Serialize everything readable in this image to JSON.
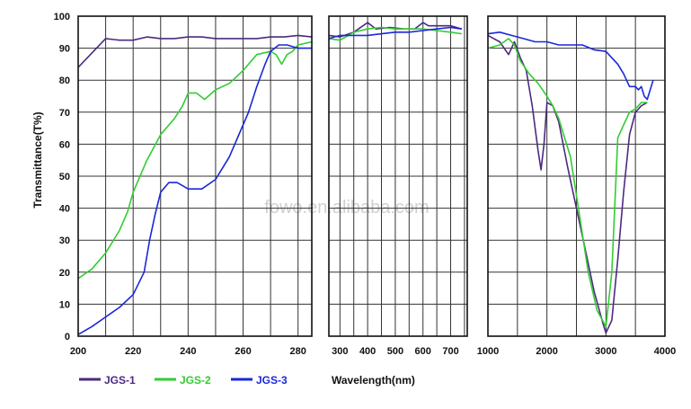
{
  "chart_data": {
    "type": "line",
    "ylabel": "Transmittance(T%)",
    "xlabel": "Wavelength(nm)",
    "ylim": [
      0,
      100
    ],
    "yticks": [
      "0",
      "10",
      "20",
      "30",
      "40",
      "50",
      "60",
      "70",
      "80",
      "90",
      "100"
    ],
    "grid": true,
    "legend_position": "bottom",
    "watermark": "fowo.en.alibaba.com",
    "panels": [
      {
        "xlim": [
          200,
          285
        ],
        "xticks": [
          {
            "v": 200,
            "label": "200"
          },
          {
            "v": 220,
            "label": "220"
          },
          {
            "v": 240,
            "label": "240"
          },
          {
            "v": 260,
            "label": "260"
          },
          {
            "v": 280,
            "label": "280"
          }
        ],
        "series": [
          {
            "name": "JGS-1",
            "color": "#4b2a80",
            "points": [
              [
                200,
                84
              ],
              [
                205,
                88.5
              ],
              [
                210,
                93
              ],
              [
                215,
                92.5
              ],
              [
                220,
                92.5
              ],
              [
                225,
                93.5
              ],
              [
                230,
                93
              ],
              [
                235,
                93
              ],
              [
                240,
                93.5
              ],
              [
                245,
                93.5
              ],
              [
                250,
                93
              ],
              [
                255,
                93
              ],
              [
                260,
                93
              ],
              [
                265,
                93
              ],
              [
                270,
                93.5
              ],
              [
                275,
                93.5
              ],
              [
                280,
                94
              ],
              [
                285,
                93.5
              ]
            ]
          },
          {
            "name": "JGS-2",
            "color": "#33cc33",
            "points": [
              [
                200,
                18
              ],
              [
                205,
                21
              ],
              [
                210,
                26
              ],
              [
                215,
                33
              ],
              [
                218,
                39
              ],
              [
                220,
                45
              ],
              [
                225,
                55
              ],
              [
                230,
                63
              ],
              [
                235,
                68
              ],
              [
                238,
                72
              ],
              [
                240,
                76
              ],
              [
                243,
                76
              ],
              [
                246,
                74
              ],
              [
                250,
                77
              ],
              [
                255,
                79
              ],
              [
                260,
                83
              ],
              [
                265,
                88
              ],
              [
                270,
                89
              ],
              [
                272,
                88
              ],
              [
                274,
                85
              ],
              [
                276,
                88
              ],
              [
                278,
                89
              ],
              [
                280,
                91
              ],
              [
                285,
                92
              ]
            ]
          },
          {
            "name": "JGS-3",
            "color": "#1a28d8",
            "points": [
              [
                200,
                0.5
              ],
              [
                205,
                3
              ],
              [
                210,
                6
              ],
              [
                215,
                9
              ],
              [
                220,
                13
              ],
              [
                224,
                20
              ],
              [
                226,
                30
              ],
              [
                228,
                38
              ],
              [
                230,
                45
              ],
              [
                233,
                48
              ],
              [
                236,
                48
              ],
              [
                240,
                46
              ],
              [
                245,
                46
              ],
              [
                250,
                49
              ],
              [
                255,
                56
              ],
              [
                260,
                66
              ],
              [
                262,
                70
              ],
              [
                265,
                78
              ],
              [
                268,
                85
              ],
              [
                270,
                89
              ],
              [
                273,
                91
              ],
              [
                276,
                91
              ],
              [
                280,
                90
              ],
              [
                285,
                90
              ]
            ]
          }
        ]
      },
      {
        "xlim": [
          260,
          760
        ],
        "xticks": [
          {
            "v": 300,
            "label": "300"
          },
          {
            "v": 400,
            "label": "400"
          },
          {
            "v": 500,
            "label": "500"
          },
          {
            "v": 600,
            "label": "600"
          },
          {
            "v": 700,
            "label": "700"
          }
        ],
        "series": [
          {
            "name": "JGS-1",
            "color": "#4b2a80",
            "points": [
              [
                260,
                94
              ],
              [
                300,
                93.5
              ],
              [
                350,
                95
              ],
              [
                400,
                98
              ],
              [
                430,
                96
              ],
              [
                480,
                96.5
              ],
              [
                530,
                96
              ],
              [
                570,
                96
              ],
              [
                600,
                98
              ],
              [
                620,
                97
              ],
              [
                650,
                97
              ],
              [
                700,
                97
              ],
              [
                740,
                96
              ]
            ]
          },
          {
            "name": "JGS-2",
            "color": "#33cc33",
            "points": [
              [
                260,
                93
              ],
              [
                300,
                92.5
              ],
              [
                350,
                95
              ],
              [
                400,
                96
              ],
              [
                450,
                96.5
              ],
              [
                500,
                96
              ],
              [
                550,
                96
              ],
              [
                600,
                96
              ],
              [
                650,
                95.5
              ],
              [
                700,
                95
              ],
              [
                740,
                94.5
              ]
            ]
          },
          {
            "name": "JGS-3",
            "color": "#1a28d8",
            "points": [
              [
                260,
                93
              ],
              [
                300,
                94
              ],
              [
                350,
                94
              ],
              [
                400,
                94
              ],
              [
                450,
                94.5
              ],
              [
                500,
                95
              ],
              [
                550,
                95
              ],
              [
                600,
                95.5
              ],
              [
                650,
                96
              ],
              [
                700,
                96.5
              ],
              [
                740,
                96
              ]
            ]
          }
        ]
      },
      {
        "xlim": [
          1000,
          4000
        ],
        "xticks": [
          {
            "v": 1000,
            "label": "1000"
          },
          {
            "v": 2000,
            "label": "2000"
          },
          {
            "v": 3000,
            "label": "3000"
          },
          {
            "v": 4000,
            "label": "4000"
          }
        ],
        "series": [
          {
            "name": "JGS-1",
            "color": "#4b2a80",
            "points": [
              [
                1000,
                94
              ],
              [
                1200,
                92
              ],
              [
                1350,
                88
              ],
              [
                1450,
                92
              ],
              [
                1550,
                87
              ],
              [
                1650,
                83
              ],
              [
                1750,
                72
              ],
              [
                1850,
                58
              ],
              [
                1900,
                52
              ],
              [
                1950,
                60
              ],
              [
                2000,
                73
              ],
              [
                2100,
                72
              ],
              [
                2200,
                67
              ],
              [
                2350,
                53
              ],
              [
                2500,
                40
              ],
              [
                2650,
                27
              ],
              [
                2800,
                14
              ],
              [
                2950,
                4
              ],
              [
                3000,
                1
              ],
              [
                3100,
                5
              ],
              [
                3200,
                24
              ],
              [
                3300,
                45
              ],
              [
                3400,
                63
              ],
              [
                3500,
                70
              ],
              [
                3600,
                72
              ],
              [
                3700,
                73
              ]
            ]
          },
          {
            "name": "JGS-2",
            "color": "#33cc33",
            "points": [
              [
                1000,
                90
              ],
              [
                1200,
                91
              ],
              [
                1350,
                93
              ],
              [
                1450,
                91
              ],
              [
                1550,
                86
              ],
              [
                1700,
                82
              ],
              [
                1850,
                79
              ],
              [
                2000,
                75
              ],
              [
                2100,
                72
              ],
              [
                2200,
                68
              ],
              [
                2400,
                56
              ],
              [
                2550,
                38
              ],
              [
                2700,
                20
              ],
              [
                2850,
                8
              ],
              [
                3000,
                3
              ],
              [
                3100,
                20
              ],
              [
                3200,
                62
              ],
              [
                3300,
                66
              ],
              [
                3400,
                70
              ],
              [
                3500,
                71
              ],
              [
                3600,
                73
              ],
              [
                3700,
                73
              ]
            ]
          },
          {
            "name": "JGS-3",
            "color": "#1a28d8",
            "points": [
              [
                1000,
                94.5
              ],
              [
                1200,
                95
              ],
              [
                1400,
                94
              ],
              [
                1600,
                93
              ],
              [
                1800,
                92
              ],
              [
                2000,
                92
              ],
              [
                2200,
                91
              ],
              [
                2400,
                91
              ],
              [
                2600,
                91
              ],
              [
                2800,
                89.5
              ],
              [
                3000,
                89
              ],
              [
                3200,
                85
              ],
              [
                3300,
                82
              ],
              [
                3400,
                78
              ],
              [
                3500,
                78
              ],
              [
                3550,
                77
              ],
              [
                3600,
                78
              ],
              [
                3650,
                75
              ],
              [
                3700,
                74
              ],
              [
                3750,
                77
              ],
              [
                3800,
                80
              ]
            ]
          }
        ]
      }
    ]
  },
  "legend": {
    "items": [
      {
        "label": "JGS-1",
        "color": "#4b2a80"
      },
      {
        "label": "JGS-2",
        "color": "#33cc33"
      },
      {
        "label": "JGS-3",
        "color": "#1a28d8"
      }
    ]
  }
}
